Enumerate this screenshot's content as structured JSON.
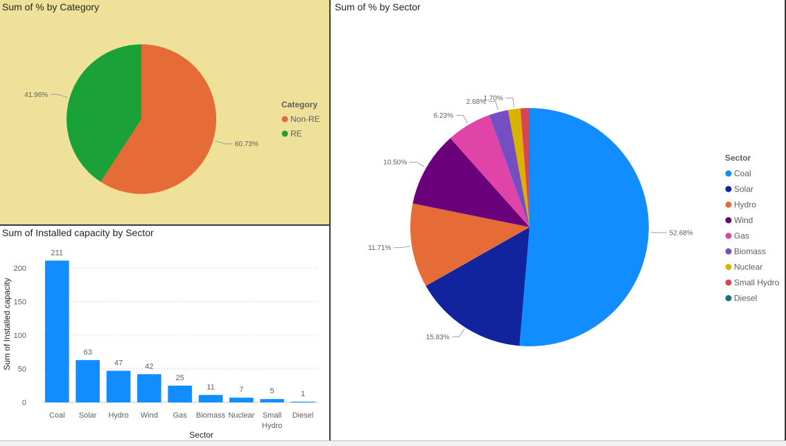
{
  "charts": {
    "category": {
      "title": "Sum of % by Category",
      "legend_title": "Category",
      "legend_placement": "right",
      "colors": [
        "#e66c37",
        "#1aa137"
      ]
    },
    "sector_pie": {
      "title": "Sum of % by Sector",
      "legend_title": "Sector",
      "legend_placement": "right",
      "colors": [
        "#118dff",
        "#12239e",
        "#e66c37",
        "#6b007b",
        "#e044a7",
        "#744ec2",
        "#d9b300",
        "#d64550",
        "#197278"
      ]
    },
    "capacity_bar": {
      "title": "Sum of Installed capacity by Sector",
      "color": "#118dff"
    }
  },
  "chart_data": [
    {
      "type": "pie",
      "title": "Sum of % by Category",
      "legend_title": "Category",
      "categories": [
        "Non-RE",
        "RE"
      ],
      "values": [
        60.73,
        41.96
      ],
      "labels": [
        "60.73%",
        "41.96%"
      ]
    },
    {
      "type": "pie",
      "title": "Sum of % by Sector",
      "legend_title": "Sector",
      "categories": [
        "Coal",
        "Solar",
        "Hydro",
        "Wind",
        "Gas",
        "Biomass",
        "Nuclear",
        "Small Hydro",
        "Diesel"
      ],
      "values": [
        52.68,
        15.83,
        11.71,
        10.5,
        6.23,
        2.68,
        1.7,
        1.18,
        0.08
      ],
      "labels": [
        "52.68%",
        "15.83%",
        "11.71%",
        "10.50%",
        "6.23%",
        "2.68%",
        "1.70%",
        "",
        ""
      ]
    },
    {
      "type": "bar",
      "title": "Sum of Installed capacity by Sector",
      "categories": [
        "Coal",
        "Solar",
        "Hydro",
        "Wind",
        "Gas",
        "Biomass",
        "Nuclear",
        "Small Hydro",
        "Diesel"
      ],
      "category_lines": [
        [
          "Coal"
        ],
        [
          "Solar"
        ],
        [
          "Hydro"
        ],
        [
          "Wind"
        ],
        [
          "Gas"
        ],
        [
          "Biomass"
        ],
        [
          "Nuclear"
        ],
        [
          "Small",
          "Hydro"
        ],
        [
          "Diesel"
        ]
      ],
      "values": [
        211,
        63,
        47,
        42,
        25,
        11,
        7,
        5,
        1
      ],
      "xlabel": "Sector",
      "ylabel": "Sum of Installed capacity",
      "ylim": [
        0,
        220
      ],
      "yticks": [
        0,
        50,
        100,
        150,
        200
      ],
      "grid": true
    }
  ]
}
